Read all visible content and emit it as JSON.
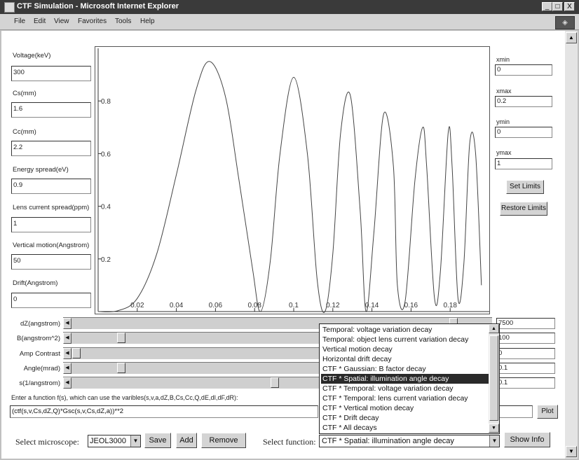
{
  "window": {
    "title": "CTF Simulation - Microsoft Internet Explorer",
    "controls": [
      "_",
      "□",
      "X"
    ]
  },
  "menubar": [
    "File",
    "Edit",
    "View",
    "Favorites",
    "Tools",
    "Help"
  ],
  "params": [
    {
      "label": "Voltage(keV)",
      "value": "300"
    },
    {
      "label": "Cs(mm)",
      "value": "1.6"
    },
    {
      "label": "Cc(mm)",
      "value": "2.2"
    },
    {
      "label": "Energy spread(eV)",
      "value": "0.9"
    },
    {
      "label": "Lens current spread(ppm)",
      "value": "1"
    },
    {
      "label": "Vertical motion(Angstrom)",
      "value": "50"
    },
    {
      "label": "Drift(Angstrom)",
      "value": "0"
    }
  ],
  "limits": {
    "xmin": {
      "label": "xmin",
      "value": "0"
    },
    "xmax": {
      "label": "xmax",
      "value": "0.2"
    },
    "ymin": {
      "label": "ymin",
      "value": "0"
    },
    "ymax": {
      "label": "ymax",
      "value": "1"
    },
    "set_label": "Set Limits",
    "restore_label": "Restore Limits"
  },
  "chart_data": {
    "type": "line",
    "xlim": [
      0,
      0.2
    ],
    "ylim": [
      0,
      1
    ],
    "x_ticks": [
      "0.02",
      "0.04",
      "0.06",
      "0.08",
      "0.1",
      "0.12",
      "0.14",
      "0.16",
      "0.18"
    ],
    "y_ticks": [
      "0.2",
      "0.4",
      "0.6",
      "0.8"
    ],
    "grid": false,
    "series": [
      {
        "color": "#444444",
        "x": [
          0,
          0.01,
          0.02,
          0.03,
          0.04,
          0.05,
          0.057,
          0.065,
          0.072,
          0.079,
          0.083,
          0.088,
          0.093,
          0.1,
          0.107,
          0.112,
          0.116,
          0.12,
          0.124,
          0.129,
          0.134,
          0.137,
          0.141,
          0.146,
          0.151,
          0.153,
          0.157,
          0.162,
          0.166,
          0.168,
          0.172,
          0.175,
          0.179,
          0.181,
          0.184,
          0.187,
          0.19,
          0.193,
          0.196
        ],
        "y": [
          0,
          0.003,
          0.05,
          0.22,
          0.52,
          0.84,
          0.95,
          0.82,
          0.5,
          0.16,
          0.0,
          0.19,
          0.6,
          0.89,
          0.6,
          0.12,
          0.0,
          0.22,
          0.68,
          0.82,
          0.38,
          0.0,
          0.3,
          0.75,
          0.55,
          0.1,
          0.04,
          0.5,
          0.7,
          0.55,
          0.05,
          0.15,
          0.68,
          0.55,
          0.05,
          0.18,
          0.64,
          0.6,
          0.1
        ]
      }
    ]
  },
  "sliders": [
    {
      "label": "dZ(angstrom)",
      "value": "7500",
      "level": 0.93
    },
    {
      "label": "B(angstrom^2)",
      "value": "100",
      "level": 0.11
    },
    {
      "label": "Amp Contrast",
      "value": "0",
      "level": 0.0
    },
    {
      "label": "Angle(mrad)",
      "value": "0.1",
      "level": 0.11
    },
    {
      "label": "s(1/angstrom)",
      "value": "0.1",
      "level": 0.49
    }
  ],
  "function": {
    "prompt": "Enter a function f(s), which can use the varibles(s,v,a,dZ,B,Cs,Cc,Q,dE,dI,dF,dR):",
    "value": "(ctf(s,v,Cs,dZ,Q)*Gsc(s,v,Cs,dZ,a))**2",
    "plot_label": "Plot"
  },
  "bottom": {
    "microscope_label": "Select microscope:",
    "microscope_value": "JEOL3000",
    "save_label": "Save",
    "add_label": "Add",
    "remove_label": "Remove",
    "function_label": "Select function:",
    "function_value": "CTF * Spatial: illumination angle decay",
    "show_info_label": "Show Info"
  },
  "dropdown": {
    "items": [
      "Temporal: voltage variation decay",
      "Temporal: object lens current variation decay",
      "Vertical motion decay",
      "Horizontal drift decay",
      "CTF * Gaussian: B factor decay",
      "CTF * Spatial: illumination angle decay",
      "CTF * Temporal: voltage variation decay",
      "CTF * Temporal: lens current variation decay",
      "CTF * Vertical motion decay",
      "CTF * Drift decay",
      "CTF * All decays"
    ],
    "selected_index": 5
  }
}
